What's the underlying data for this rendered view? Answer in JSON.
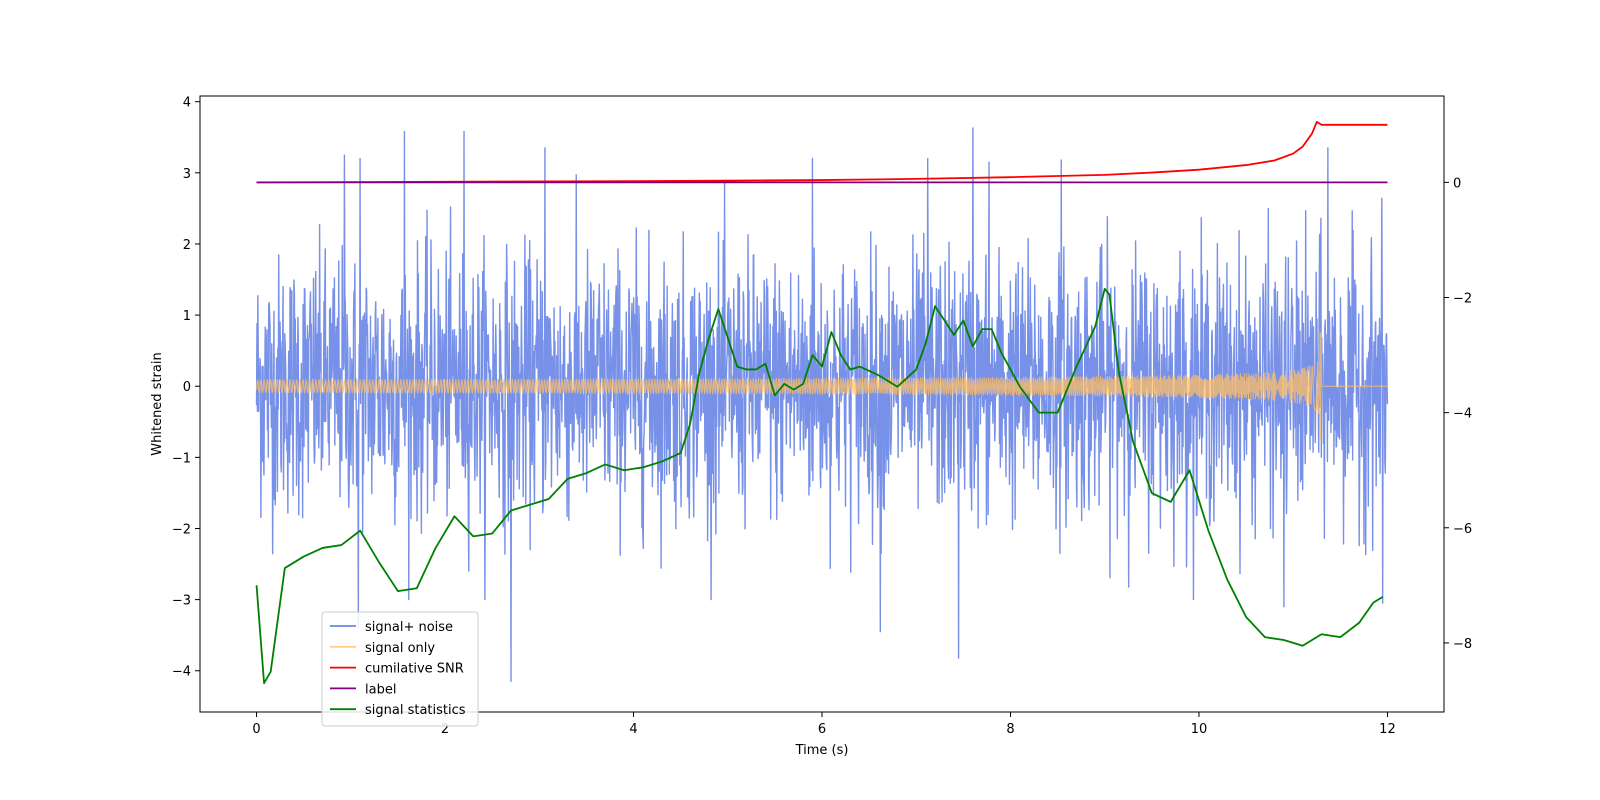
{
  "chart_data": {
    "type": "line",
    "xlabel": "Time (s)",
    "ylabel": "Whitened strain",
    "y2label": "",
    "xlim": [
      -0.6,
      12.6
    ],
    "ylim": [
      -4.58,
      4.08
    ],
    "y2lim": [
      -9.2,
      1.5
    ],
    "x_ticks": [
      0,
      2,
      4,
      6,
      8,
      10,
      12
    ],
    "x_tick_labels": [
      "0",
      "2",
      "4",
      "6",
      "8",
      "10",
      "12"
    ],
    "y_ticks": [
      -4,
      -3,
      -2,
      -1,
      0,
      1,
      2,
      3,
      4
    ],
    "y_tick_labels": [
      "−4",
      "−3",
      "−2",
      "−1",
      "0",
      "1",
      "2",
      "3",
      "4"
    ],
    "y2_ticks": [
      -8,
      -6,
      -4,
      -2,
      0
    ],
    "y2_tick_labels": [
      "−8",
      "−6",
      "−4",
      "−2",
      "0"
    ],
    "grid": false,
    "legend_position": "lower-left",
    "series": [
      {
        "name": "signal+ noise",
        "axis": "left",
        "color": "#6b87e6",
        "description_kind": "noise",
        "x_range": [
          0,
          12
        ],
        "typical_range": [
          -2.0,
          2.3
        ],
        "notable_peaks": [
          {
            "x": 0.93,
            "y": 3.25
          },
          {
            "x": 1.1,
            "y": 3.2
          },
          {
            "x": 1.57,
            "y": 3.58
          },
          {
            "x": 2.2,
            "y": 3.58
          },
          {
            "x": 3.06,
            "y": 3.35
          },
          {
            "x": 5.9,
            "y": 3.2
          },
          {
            "x": 7.12,
            "y": 3.2
          },
          {
            "x": 7.6,
            "y": 3.63
          },
          {
            "x": 7.77,
            "y": 3.15
          },
          {
            "x": 8.54,
            "y": 3.18
          },
          {
            "x": 11.37,
            "y": 3.35
          }
        ],
        "notable_troughs": [
          {
            "x": 1.08,
            "y": -3.4
          },
          {
            "x": 2.7,
            "y": -4.15
          },
          {
            "x": 6.62,
            "y": -3.45
          },
          {
            "x": 7.45,
            "y": -3.82
          },
          {
            "x": 10.9,
            "y": -3.1
          },
          {
            "x": 11.95,
            "y": -3.05
          }
        ]
      },
      {
        "name": "signal only",
        "axis": "left",
        "color": "#ffbf66",
        "description_kind": "chirp",
        "x_range": [
          0,
          12
        ],
        "peak_time": 11.3,
        "peak_amplitude": 0.75
      },
      {
        "name": "cumilative SNR",
        "axis": "right",
        "color": "#ff0000",
        "x": [
          0,
          2,
          4,
          6,
          7,
          8,
          9,
          9.5,
          10,
          10.5,
          10.8,
          11.0,
          11.1,
          11.2,
          11.25,
          11.3,
          12
        ],
        "y": [
          0,
          0.01,
          0.02,
          0.04,
          0.06,
          0.09,
          0.13,
          0.17,
          0.22,
          0.3,
          0.38,
          0.5,
          0.62,
          0.85,
          1.05,
          1.0,
          1.0
        ]
      },
      {
        "name": "label",
        "axis": "right",
        "color": "#800080",
        "x": [
          0,
          12
        ],
        "y": [
          0,
          0
        ]
      },
      {
        "name": "signal statistics",
        "axis": "right",
        "color": "#008000",
        "x": [
          0,
          0.08,
          0.15,
          0.3,
          0.5,
          0.7,
          0.9,
          1.1,
          1.3,
          1.5,
          1.7,
          1.9,
          2.1,
          2.3,
          2.5,
          2.7,
          2.9,
          3.1,
          3.3,
          3.5,
          3.7,
          3.9,
          4.1,
          4.3,
          4.5,
          4.6,
          4.7,
          4.8,
          4.9,
          5.0,
          5.1,
          5.2,
          5.3,
          5.4,
          5.5,
          5.6,
          5.7,
          5.8,
          5.9,
          6.0,
          6.1,
          6.2,
          6.3,
          6.4,
          6.6,
          6.8,
          7.0,
          7.1,
          7.2,
          7.3,
          7.4,
          7.5,
          7.6,
          7.7,
          7.8,
          7.9,
          8.1,
          8.3,
          8.5,
          8.7,
          8.9,
          9.0,
          9.05,
          9.15,
          9.3,
          9.5,
          9.7,
          9.9,
          10.1,
          10.3,
          10.5,
          10.7,
          10.9,
          11.1,
          11.3,
          11.5,
          11.7,
          11.85,
          11.95
        ],
        "y": [
          -7.0,
          -8.7,
          -8.5,
          -6.7,
          -6.5,
          -6.35,
          -6.3,
          -6.05,
          -6.6,
          -7.1,
          -7.05,
          -6.35,
          -5.8,
          -6.15,
          -6.1,
          -5.7,
          -5.6,
          -5.5,
          -5.15,
          -5.05,
          -4.9,
          -5.0,
          -4.95,
          -4.85,
          -4.7,
          -4.2,
          -3.3,
          -2.7,
          -2.2,
          -2.7,
          -3.2,
          -3.25,
          -3.25,
          -3.15,
          -3.7,
          -3.5,
          -3.6,
          -3.5,
          -3.0,
          -3.2,
          -2.6,
          -3.0,
          -3.25,
          -3.2,
          -3.35,
          -3.55,
          -3.25,
          -2.8,
          -2.15,
          -2.4,
          -2.65,
          -2.4,
          -2.85,
          -2.55,
          -2.55,
          -2.95,
          -3.55,
          -4.0,
          -4.0,
          -3.2,
          -2.5,
          -1.85,
          -1.95,
          -3.3,
          -4.5,
          -5.4,
          -5.55,
          -5.0,
          -6.05,
          -6.9,
          -7.55,
          -7.9,
          -7.95,
          -8.05,
          -7.85,
          -7.9,
          -7.65,
          -7.3,
          -7.2
        ]
      }
    ]
  }
}
